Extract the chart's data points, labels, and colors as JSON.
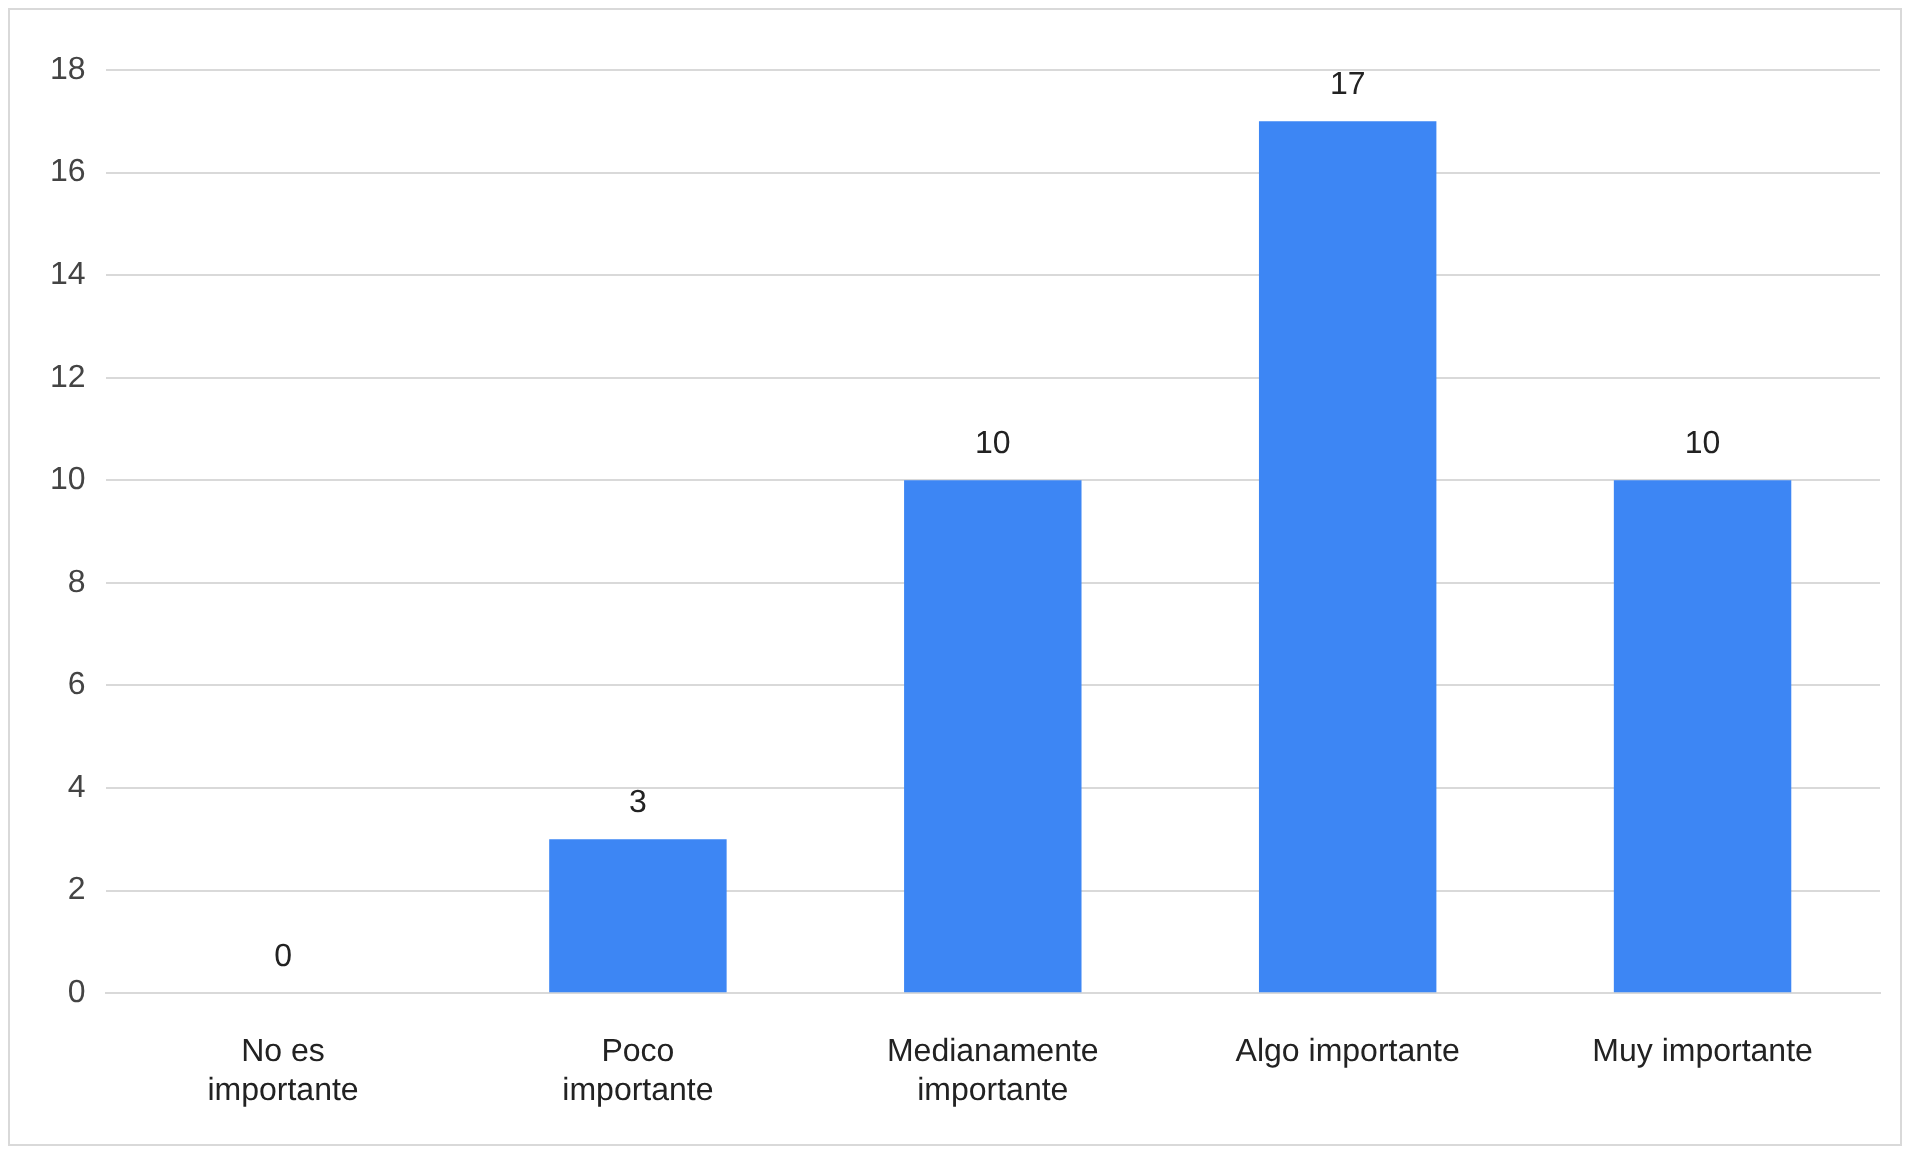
{
  "chart_data": {
    "type": "bar",
    "categories": [
      "No es importante",
      "Poco importante",
      "Medianamente importante",
      "Algo importante",
      "Muy importante"
    ],
    "values": [
      0,
      3,
      10,
      17,
      10
    ],
    "color": "#3d86f4",
    "ylim": [
      0,
      18
    ],
    "yticks": [
      0,
      2,
      4,
      6,
      8,
      10,
      12,
      14,
      16,
      18
    ],
    "grid": "y",
    "legend": false,
    "data_labels": true
  }
}
